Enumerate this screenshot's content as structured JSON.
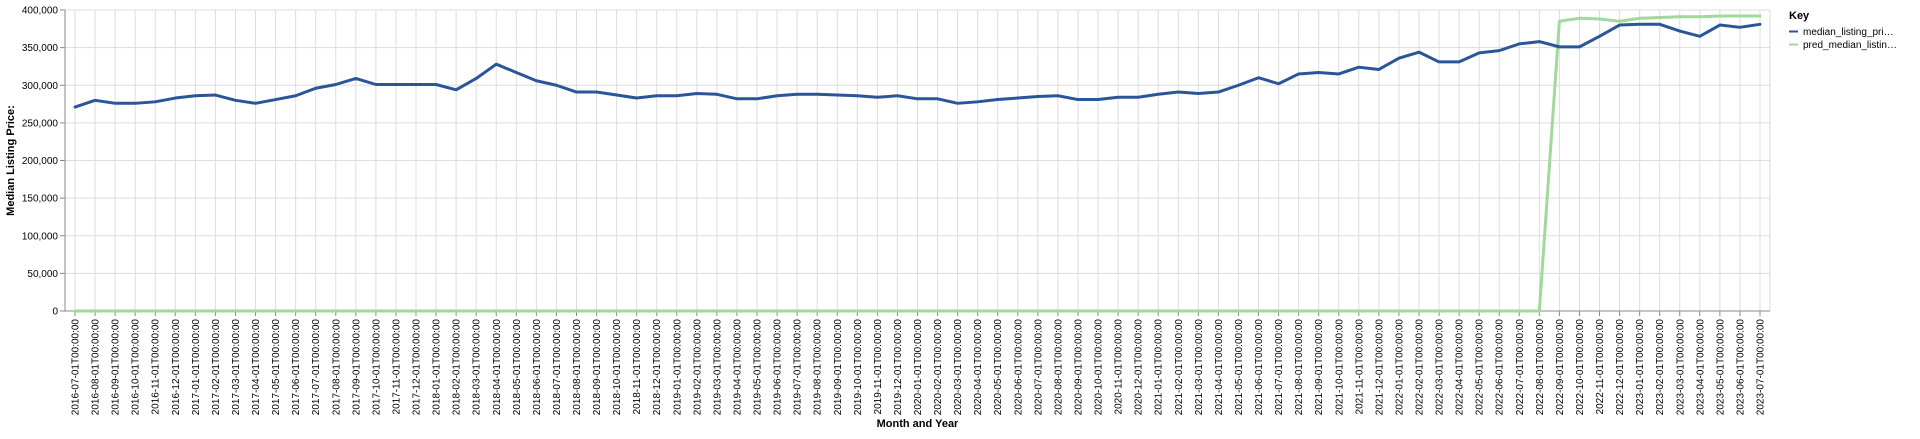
{
  "chart_data": {
    "type": "line",
    "xlabel": "Month and Year",
    "ylabel": "Median Listing Price:",
    "ylim": [
      0,
      400000
    ],
    "yticks": [
      "0",
      "50,000",
      "100,000",
      "150,000",
      "200,000",
      "250,000",
      "300,000",
      "350,000",
      "400,000"
    ],
    "grid": true,
    "legend": {
      "title": "Key",
      "placement": "top-right",
      "entries": [
        "median_listing_pri…",
        "pred_median_listin…"
      ]
    },
    "x": [
      "2016-07-01T00:00:00",
      "2016-08-01T00:00:00",
      "2016-09-01T00:00:00",
      "2016-10-01T00:00:00",
      "2016-11-01T00:00:00",
      "2016-12-01T00:00:00",
      "2017-01-01T00:00:00",
      "2017-02-01T00:00:00",
      "2017-03-01T00:00:00",
      "2017-04-01T00:00:00",
      "2017-05-01T00:00:00",
      "2017-06-01T00:00:00",
      "2017-07-01T00:00:00",
      "2017-08-01T00:00:00",
      "2017-09-01T00:00:00",
      "2017-10-01T00:00:00",
      "2017-11-01T00:00:00",
      "2017-12-01T00:00:00",
      "2018-01-01T00:00:00",
      "2018-02-01T00:00:00",
      "2018-03-01T00:00:00",
      "2018-04-01T00:00:00",
      "2018-05-01T00:00:00",
      "2018-06-01T00:00:00",
      "2018-07-01T00:00:00",
      "2018-08-01T00:00:00",
      "2018-09-01T00:00:00",
      "2018-10-01T00:00:00",
      "2018-11-01T00:00:00",
      "2018-12-01T00:00:00",
      "2019-01-01T00:00:00",
      "2019-02-01T00:00:00",
      "2019-03-01T00:00:00",
      "2019-04-01T00:00:00",
      "2019-05-01T00:00:00",
      "2019-06-01T00:00:00",
      "2019-07-01T00:00:00",
      "2019-08-01T00:00:00",
      "2019-09-01T00:00:00",
      "2019-10-01T00:00:00",
      "2019-11-01T00:00:00",
      "2019-12-01T00:00:00",
      "2020-01-01T00:00:00",
      "2020-02-01T00:00:00",
      "2020-03-01T00:00:00",
      "2020-04-01T00:00:00",
      "2020-05-01T00:00:00",
      "2020-06-01T00:00:00",
      "2020-07-01T00:00:00",
      "2020-08-01T00:00:00",
      "2020-09-01T00:00:00",
      "2020-10-01T00:00:00",
      "2020-11-01T00:00:00",
      "2020-12-01T00:00:00",
      "2021-01-01T00:00:00",
      "2021-02-01T00:00:00",
      "2021-03-01T00:00:00",
      "2021-04-01T00:00:00",
      "2021-05-01T00:00:00",
      "2021-06-01T00:00:00",
      "2021-07-01T00:00:00",
      "2021-08-01T00:00:00",
      "2021-09-01T00:00:00",
      "2021-10-01T00:00:00",
      "2021-11-01T00:00:00",
      "2021-12-01T00:00:00",
      "2022-01-01T00:00:00",
      "2022-02-01T00:00:00",
      "2022-03-01T00:00:00",
      "2022-04-01T00:00:00",
      "2022-05-01T00:00:00",
      "2022-06-01T00:00:00",
      "2022-07-01T00:00:00",
      "2022-08-01T00:00:00",
      "2022-09-01T00:00:00",
      "2022-10-01T00:00:00",
      "2022-11-01T00:00:00",
      "2022-12-01T00:00:00",
      "2023-01-01T00:00:00",
      "2023-02-01T00:00:00",
      "2023-03-01T00:00:00",
      "2023-04-01T00:00:00",
      "2023-05-01T00:00:00",
      "2023-06-01T00:00:00",
      "2023-07-01T00:00:00"
    ],
    "series": [
      {
        "name": "median_listing_pri…",
        "color": "#2a5599",
        "values": [
          271000,
          280000,
          276000,
          276000,
          278000,
          283000,
          286000,
          287000,
          280000,
          276000,
          281000,
          286000,
          296000,
          301000,
          309000,
          301000,
          301000,
          301000,
          301000,
          294000,
          309000,
          328000,
          317000,
          306000,
          300000,
          291000,
          291000,
          287000,
          283000,
          286000,
          286000,
          289000,
          288000,
          282000,
          282000,
          286000,
          288000,
          288000,
          287000,
          286000,
          284000,
          286000,
          282000,
          282000,
          276000,
          278000,
          281000,
          283000,
          285000,
          286000,
          281000,
          281000,
          284000,
          284000,
          288000,
          291000,
          289000,
          291000,
          300000,
          310000,
          302000,
          315000,
          317000,
          315000,
          324000,
          321000,
          336000,
          344000,
          331000,
          331000,
          343000,
          346000,
          355000,
          358000,
          351000,
          351000,
          365000,
          380000,
          381000,
          381000,
          372000,
          365000,
          380000,
          377000,
          381000
        ]
      },
      {
        "name": "pred_median_listin…",
        "color": "#a0d99a",
        "values": [
          0,
          0,
          0,
          0,
          0,
          0,
          0,
          0,
          0,
          0,
          0,
          0,
          0,
          0,
          0,
          0,
          0,
          0,
          0,
          0,
          0,
          0,
          0,
          0,
          0,
          0,
          0,
          0,
          0,
          0,
          0,
          0,
          0,
          0,
          0,
          0,
          0,
          0,
          0,
          0,
          0,
          0,
          0,
          0,
          0,
          0,
          0,
          0,
          0,
          0,
          0,
          0,
          0,
          0,
          0,
          0,
          0,
          0,
          0,
          0,
          0,
          0,
          0,
          0,
          0,
          0,
          0,
          0,
          0,
          0,
          0,
          0,
          0,
          0,
          385000,
          389000,
          388000,
          385000,
          389000,
          390000,
          391000,
          391000,
          392000,
          392000,
          392000
        ]
      }
    ]
  }
}
